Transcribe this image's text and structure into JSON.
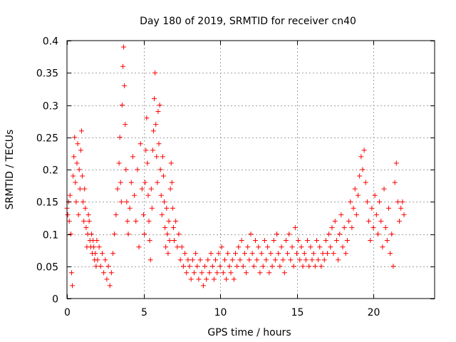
{
  "chart_data": {
    "type": "scatter",
    "title": "Day 180 of 2019, SRMTID for receiver cn40",
    "xlabel": "GPS time / hours",
    "ylabel": "SRMTID / TECUs",
    "xlim": [
      0,
      24
    ],
    "ylim": [
      0,
      0.4
    ],
    "x_ticks": [
      0,
      5,
      10,
      15,
      20
    ],
    "x_tick_labels": [
      "0",
      "5",
      "10",
      "15",
      "20"
    ],
    "y_ticks": [
      0,
      0.05,
      0.1,
      0.15,
      0.2,
      0.25,
      0.3,
      0.35,
      0.4
    ],
    "y_tick_labels": [
      "0",
      "0.05",
      "0.1",
      "0.15",
      "0.2",
      "0.25",
      "0.3",
      "0.35",
      "0.4"
    ],
    "grid": true,
    "marker": "+",
    "marker_color": "#ff0000",
    "series": [
      {
        "name": "SRMTID",
        "points": [
          [
            0.0,
            0.14
          ],
          [
            0.05,
            0.13
          ],
          [
            0.1,
            0.15
          ],
          [
            0.15,
            0.12
          ],
          [
            0.2,
            0.16
          ],
          [
            0.25,
            0.1
          ],
          [
            0.3,
            0.04
          ],
          [
            0.35,
            0.02
          ],
          [
            0.4,
            0.19
          ],
          [
            0.45,
            0.22
          ],
          [
            0.5,
            0.25
          ],
          [
            0.55,
            0.18
          ],
          [
            0.6,
            0.15
          ],
          [
            0.65,
            0.21
          ],
          [
            0.7,
            0.24
          ],
          [
            0.75,
            0.13
          ],
          [
            0.8,
            0.2
          ],
          [
            0.85,
            0.17
          ],
          [
            0.9,
            0.23
          ],
          [
            0.95,
            0.26
          ],
          [
            1.0,
            0.19
          ],
          [
            1.05,
            0.15
          ],
          [
            1.1,
            0.12
          ],
          [
            1.15,
            0.17
          ],
          [
            1.2,
            0.14
          ],
          [
            1.25,
            0.11
          ],
          [
            1.3,
            0.08
          ],
          [
            1.35,
            0.1
          ],
          [
            1.4,
            0.13
          ],
          [
            1.45,
            0.12
          ],
          [
            1.5,
            0.09
          ],
          [
            1.55,
            0.08
          ],
          [
            1.6,
            0.1
          ],
          [
            1.65,
            0.07
          ],
          [
            1.7,
            0.09
          ],
          [
            1.75,
            0.08
          ],
          [
            1.8,
            0.06
          ],
          [
            1.85,
            0.07
          ],
          [
            1.9,
            0.05
          ],
          [
            1.95,
            0.09
          ],
          [
            2.0,
            0.06
          ],
          [
            2.1,
            0.08
          ],
          [
            2.2,
            0.05
          ],
          [
            2.3,
            0.07
          ],
          [
            2.4,
            0.04
          ],
          [
            2.5,
            0.06
          ],
          [
            2.6,
            0.03
          ],
          [
            2.7,
            0.05
          ],
          [
            2.8,
            0.02
          ],
          [
            2.9,
            0.04
          ],
          [
            3.0,
            0.07
          ],
          [
            3.1,
            0.1
          ],
          [
            3.2,
            0.13
          ],
          [
            3.3,
            0.17
          ],
          [
            3.4,
            0.21
          ],
          [
            3.45,
            0.25
          ],
          [
            3.5,
            0.18
          ],
          [
            3.55,
            0.15
          ],
          [
            3.6,
            0.3
          ],
          [
            3.65,
            0.36
          ],
          [
            3.7,
            0.39
          ],
          [
            3.75,
            0.33
          ],
          [
            3.8,
            0.27
          ],
          [
            3.85,
            0.2
          ],
          [
            3.9,
            0.15
          ],
          [
            3.95,
            0.12
          ],
          [
            4.0,
            0.1
          ],
          [
            4.1,
            0.14
          ],
          [
            4.2,
            0.18
          ],
          [
            4.3,
            0.22
          ],
          [
            4.4,
            0.16
          ],
          [
            4.5,
            0.12
          ],
          [
            4.6,
            0.2
          ],
          [
            4.7,
            0.08
          ],
          [
            4.8,
            0.24
          ],
          [
            4.9,
            0.17
          ],
          [
            5.0,
            0.13
          ],
          [
            5.05,
            0.1
          ],
          [
            5.1,
            0.18
          ],
          [
            5.15,
            0.23
          ],
          [
            5.2,
            0.28
          ],
          [
            5.25,
            0.21
          ],
          [
            5.3,
            0.16
          ],
          [
            5.35,
            0.12
          ],
          [
            5.4,
            0.09
          ],
          [
            5.45,
            0.06
          ],
          [
            5.5,
            0.17
          ],
          [
            5.55,
            0.14
          ],
          [
            5.6,
            0.23
          ],
          [
            5.65,
            0.26
          ],
          [
            5.7,
            0.31
          ],
          [
            5.75,
            0.35
          ],
          [
            5.8,
            0.27
          ],
          [
            5.85,
            0.22
          ],
          [
            5.9,
            0.18
          ],
          [
            5.95,
            0.29
          ],
          [
            6.0,
            0.24
          ],
          [
            6.05,
            0.3
          ],
          [
            6.1,
            0.2
          ],
          [
            6.15,
            0.16
          ],
          [
            6.2,
            0.13
          ],
          [
            6.25,
            0.22
          ],
          [
            6.3,
            0.19
          ],
          [
            6.35,
            0.15
          ],
          [
            6.4,
            0.11
          ],
          [
            6.45,
            0.08
          ],
          [
            6.5,
            0.14
          ],
          [
            6.55,
            0.1
          ],
          [
            6.6,
            0.07
          ],
          [
            6.65,
            0.12
          ],
          [
            6.7,
            0.09
          ],
          [
            6.75,
            0.17
          ],
          [
            6.8,
            0.21
          ],
          [
            6.85,
            0.18
          ],
          [
            6.9,
            0.14
          ],
          [
            6.95,
            0.11
          ],
          [
            7.0,
            0.09
          ],
          [
            7.1,
            0.12
          ],
          [
            7.2,
            0.08
          ],
          [
            7.3,
            0.1
          ],
          [
            7.4,
            0.06
          ],
          [
            7.5,
            0.08
          ],
          [
            7.6,
            0.05
          ],
          [
            7.7,
            0.07
          ],
          [
            7.8,
            0.04
          ],
          [
            7.9,
            0.06
          ],
          [
            8.0,
            0.05
          ],
          [
            8.1,
            0.03
          ],
          [
            8.2,
            0.06
          ],
          [
            8.3,
            0.04
          ],
          [
            8.4,
            0.07
          ],
          [
            8.5,
            0.05
          ],
          [
            8.6,
            0.03
          ],
          [
            8.7,
            0.06
          ],
          [
            8.8,
            0.04
          ],
          [
            8.9,
            0.02
          ],
          [
            9.0,
            0.05
          ],
          [
            9.1,
            0.03
          ],
          [
            9.2,
            0.06
          ],
          [
            9.3,
            0.04
          ],
          [
            9.4,
            0.07
          ],
          [
            9.5,
            0.05
          ],
          [
            9.6,
            0.03
          ],
          [
            9.7,
            0.06
          ],
          [
            9.8,
            0.04
          ],
          [
            9.9,
            0.07
          ],
          [
            10.0,
            0.05
          ],
          [
            10.1,
            0.08
          ],
          [
            10.2,
            0.04
          ],
          [
            10.3,
            0.06
          ],
          [
            10.4,
            0.03
          ],
          [
            10.5,
            0.07
          ],
          [
            10.6,
            0.05
          ],
          [
            10.7,
            0.04
          ],
          [
            10.8,
            0.06
          ],
          [
            10.9,
            0.03
          ],
          [
            11.0,
            0.07
          ],
          [
            11.1,
            0.05
          ],
          [
            11.2,
            0.08
          ],
          [
            11.3,
            0.06
          ],
          [
            11.4,
            0.09
          ],
          [
            11.5,
            0.05
          ],
          [
            11.6,
            0.07
          ],
          [
            11.7,
            0.04
          ],
          [
            11.8,
            0.08
          ],
          [
            11.9,
            0.06
          ],
          [
            12.0,
            0.1
          ],
          [
            12.1,
            0.07
          ],
          [
            12.2,
            0.05
          ],
          [
            12.3,
            0.09
          ],
          [
            12.4,
            0.06
          ],
          [
            12.5,
            0.08
          ],
          [
            12.6,
            0.04
          ],
          [
            12.7,
            0.07
          ],
          [
            12.8,
            0.05
          ],
          [
            12.9,
            0.09
          ],
          [
            13.0,
            0.06
          ],
          [
            13.1,
            0.08
          ],
          [
            13.2,
            0.04
          ],
          [
            13.3,
            0.07
          ],
          [
            13.4,
            0.05
          ],
          [
            13.5,
            0.09
          ],
          [
            13.6,
            0.06
          ],
          [
            13.7,
            0.1
          ],
          [
            13.8,
            0.07
          ],
          [
            13.9,
            0.05
          ],
          [
            14.0,
            0.08
          ],
          [
            14.1,
            0.06
          ],
          [
            14.2,
            0.04
          ],
          [
            14.3,
            0.09
          ],
          [
            14.4,
            0.07
          ],
          [
            14.5,
            0.1
          ],
          [
            14.6,
            0.06
          ],
          [
            14.7,
            0.08
          ],
          [
            14.8,
            0.05
          ],
          [
            14.9,
            0.11
          ],
          [
            15.0,
            0.07
          ],
          [
            15.1,
            0.09
          ],
          [
            15.2,
            0.06
          ],
          [
            15.3,
            0.08
          ],
          [
            15.4,
            0.05
          ],
          [
            15.5,
            0.07
          ],
          [
            15.6,
            0.06
          ],
          [
            15.7,
            0.09
          ],
          [
            15.8,
            0.05
          ],
          [
            15.9,
            0.08
          ],
          [
            16.0,
            0.06
          ],
          [
            16.1,
            0.07
          ],
          [
            16.2,
            0.05
          ],
          [
            16.3,
            0.09
          ],
          [
            16.4,
            0.06
          ],
          [
            16.5,
            0.08
          ],
          [
            16.6,
            0.05
          ],
          [
            16.7,
            0.07
          ],
          [
            16.8,
            0.06
          ],
          [
            16.9,
            0.09
          ],
          [
            17.0,
            0.07
          ],
          [
            17.1,
            0.1
          ],
          [
            17.2,
            0.08
          ],
          [
            17.3,
            0.11
          ],
          [
            17.4,
            0.07
          ],
          [
            17.5,
            0.12
          ],
          [
            17.6,
            0.09
          ],
          [
            17.7,
            0.06
          ],
          [
            17.8,
            0.1
          ],
          [
            17.9,
            0.13
          ],
          [
            18.0,
            0.08
          ],
          [
            18.1,
            0.11
          ],
          [
            18.2,
            0.07
          ],
          [
            18.3,
            0.09
          ],
          [
            18.4,
            0.12
          ],
          [
            18.5,
            0.15
          ],
          [
            18.6,
            0.11
          ],
          [
            18.7,
            0.14
          ],
          [
            18.8,
            0.17
          ],
          [
            18.9,
            0.13
          ],
          [
            19.0,
            0.16
          ],
          [
            19.1,
            0.19
          ],
          [
            19.2,
            0.22
          ],
          [
            19.3,
            0.2
          ],
          [
            19.4,
            0.23
          ],
          [
            19.5,
            0.18
          ],
          [
            19.6,
            0.15
          ],
          [
            19.7,
            0.12
          ],
          [
            19.8,
            0.09
          ],
          [
            19.9,
            0.14
          ],
          [
            20.0,
            0.11
          ],
          [
            20.1,
            0.16
          ],
          [
            20.2,
            0.13
          ],
          [
            20.3,
            0.1
          ],
          [
            20.4,
            0.15
          ],
          [
            20.5,
            0.12
          ],
          [
            20.6,
            0.08
          ],
          [
            20.7,
            0.17
          ],
          [
            20.8,
            0.11
          ],
          [
            20.9,
            0.09
          ],
          [
            21.0,
            0.14
          ],
          [
            21.1,
            0.07
          ],
          [
            21.2,
            0.1
          ],
          [
            21.3,
            0.05
          ],
          [
            21.4,
            0.18
          ],
          [
            21.5,
            0.21
          ],
          [
            21.6,
            0.15
          ],
          [
            21.7,
            0.12
          ],
          [
            21.8,
            0.14
          ],
          [
            21.9,
            0.15
          ],
          [
            22.0,
            0.13
          ]
        ]
      }
    ]
  }
}
